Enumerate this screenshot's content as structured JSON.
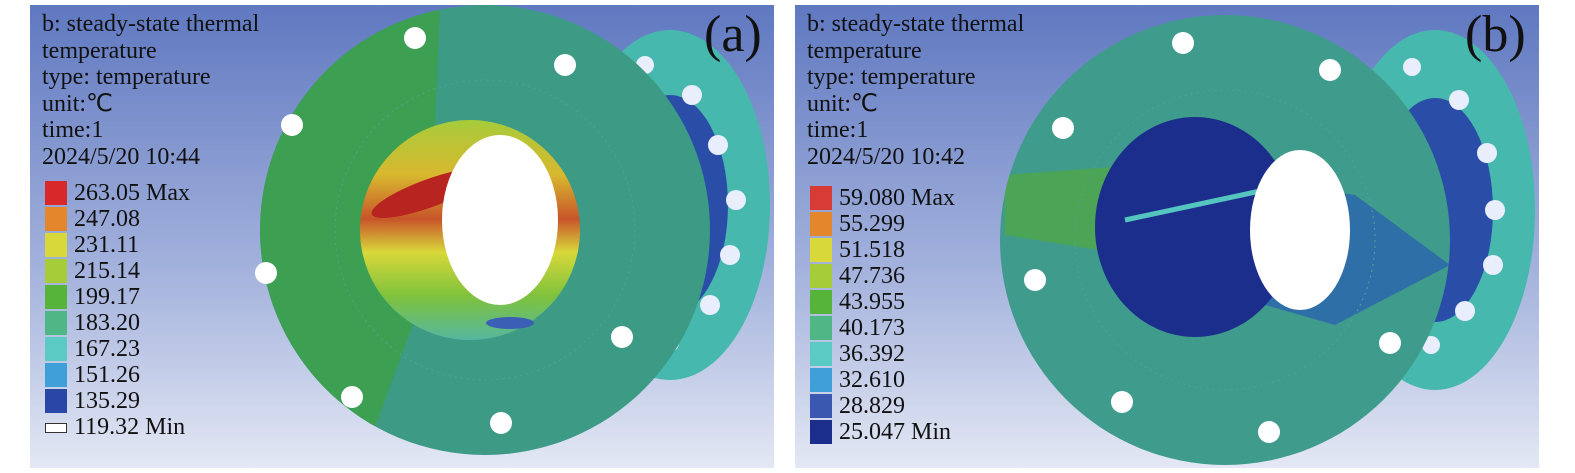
{
  "panels": [
    {
      "label": "(a)",
      "info": [
        "b: steady-state thermal",
        "temperature",
        "type: temperature",
        "unit:℃",
        "time:1",
        "2024/5/20 10:44"
      ],
      "legend": [
        {
          "value": "263.05 Max",
          "color": "#d8282a"
        },
        {
          "value": "247.08",
          "color": "#e3862c"
        },
        {
          "value": "231.11",
          "color": "#d8d83a"
        },
        {
          "value": "215.14",
          "color": "#a6cc3a"
        },
        {
          "value": "199.17",
          "color": "#56b43a"
        },
        {
          "value": "183.20",
          "color": "#4fb686"
        },
        {
          "value": "167.23",
          "color": "#5ccac4"
        },
        {
          "value": "151.26",
          "color": "#3f9fd8"
        },
        {
          "value": "135.29",
          "color": "#2b47a6"
        },
        {
          "value": "119.32 Min",
          "color": "#ffffff"
        }
      ]
    },
    {
      "label": "(b)",
      "info": [
        "b: steady-state thermal",
        "temperature",
        "type: temperature",
        "unit:℃",
        "time:1",
        "2024/5/20 10:42"
      ],
      "legend": [
        {
          "value": "59.080 Max",
          "color": "#d83a36"
        },
        {
          "value": "55.299",
          "color": "#e3862c"
        },
        {
          "value": "51.518",
          "color": "#d8d83a"
        },
        {
          "value": "47.736",
          "color": "#a6cc3a"
        },
        {
          "value": "43.955",
          "color": "#56b43a"
        },
        {
          "value": "40.173",
          "color": "#4fb686"
        },
        {
          "value": "36.392",
          "color": "#5ccac4"
        },
        {
          "value": "32.610",
          "color": "#3f9fd8"
        },
        {
          "value": "28.829",
          "color": "#3a58b0"
        },
        {
          "value": "25.047 Min",
          "color": "#1c2e8c"
        }
      ]
    }
  ]
}
